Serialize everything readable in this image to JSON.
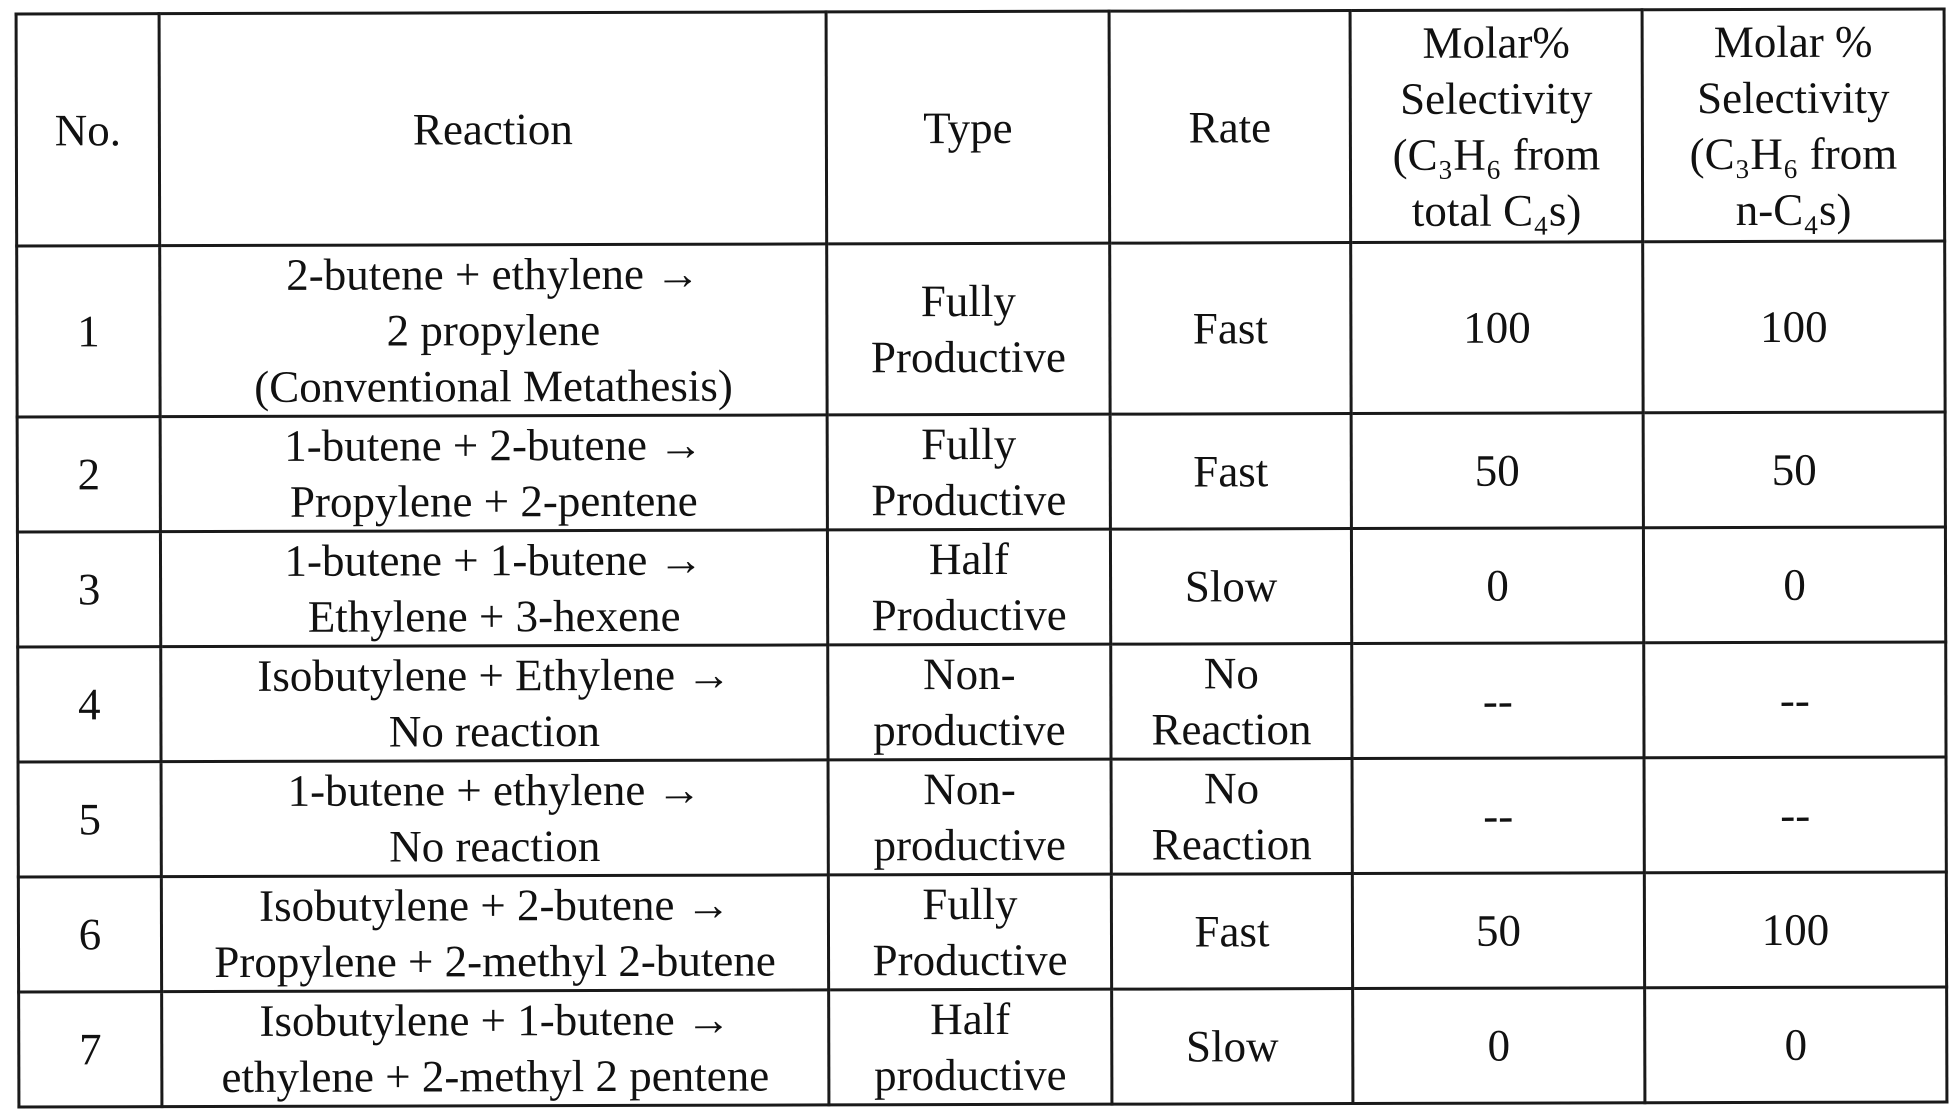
{
  "table": {
    "headers": {
      "no": "No.",
      "reaction": "Reaction",
      "type": "Type",
      "rate": "Rate",
      "selectivity_total": [
        "Molar%",
        "Selectivity",
        "(C₃H₆ from",
        "total C₄s)"
      ],
      "selectivity_n": [
        "Molar %",
        "Selectivity",
        "(C₃H₆ from",
        "n-C₄s)"
      ]
    },
    "rows": [
      {
        "no": "1",
        "reaction": [
          "2-butene + ethylene →",
          "2 propylene",
          "(Conventional Metathesis)"
        ],
        "type": [
          "Fully",
          "Productive"
        ],
        "rate": [
          "Fast"
        ],
        "selectivity_total": "100",
        "selectivity_n": "100"
      },
      {
        "no": "2",
        "reaction": [
          "1-butene + 2-butene →",
          "Propylene + 2-pentene"
        ],
        "type": [
          "Fully",
          "Productive"
        ],
        "rate": [
          "Fast"
        ],
        "selectivity_total": "50",
        "selectivity_n": "50"
      },
      {
        "no": "3",
        "reaction": [
          "1-butene + 1-butene →",
          "Ethylene + 3-hexene"
        ],
        "type": [
          "Half",
          "Productive"
        ],
        "rate": [
          "Slow"
        ],
        "selectivity_total": "0",
        "selectivity_n": "0"
      },
      {
        "no": "4",
        "reaction": [
          "Isobutylene + Ethylene →",
          "No reaction"
        ],
        "type": [
          "Non-",
          "productive"
        ],
        "rate": [
          "No",
          "Reaction"
        ],
        "selectivity_total": "--",
        "selectivity_n": "--"
      },
      {
        "no": "5",
        "reaction": [
          "1-butene + ethylene →",
          "No reaction"
        ],
        "type": [
          "Non-",
          "productive"
        ],
        "rate": [
          "No",
          "Reaction"
        ],
        "selectivity_total": "--",
        "selectivity_n": "--"
      },
      {
        "no": "6",
        "reaction": [
          "Isobutylene + 2-butene →",
          "Propylene + 2-methyl 2-butene"
        ],
        "type": [
          "Fully",
          "Productive"
        ],
        "rate": [
          "Fast"
        ],
        "selectivity_total": "50",
        "selectivity_n": "100"
      },
      {
        "no": "7",
        "reaction": [
          "Isobutylene + 1-butene →",
          "ethylene + 2-methyl 2 pentene"
        ],
        "type": [
          "Half",
          "productive"
        ],
        "rate": [
          "Slow"
        ],
        "selectivity_total": "0",
        "selectivity_n": "0"
      }
    ]
  }
}
